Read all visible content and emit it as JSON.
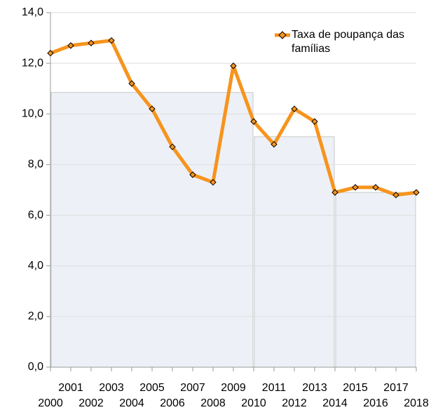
{
  "chart_data": {
    "type": "line",
    "categories": [
      "2000",
      "2001",
      "2002",
      "2003",
      "2004",
      "2005",
      "2006",
      "2007",
      "2008",
      "2009",
      "2010",
      "2011",
      "2012",
      "2013",
      "2014",
      "2015",
      "2016",
      "2017",
      "2018"
    ],
    "series": [
      {
        "name": "Taxa de poupança das famílias",
        "color": "#f7941d",
        "marker_color": "#f7941d",
        "values": [
          12.4,
          12.7,
          12.8,
          12.9,
          11.2,
          10.2,
          8.7,
          7.6,
          7.3,
          11.9,
          9.7,
          8.8,
          10.2,
          9.7,
          6.9,
          7.1,
          7.1,
          6.8,
          6.9
        ]
      }
    ],
    "background_bars": {
      "color": "#edf1f7",
      "edge": "#c8c8c8",
      "items": [
        {
          "from": "2000",
          "to": "2010",
          "value": 10.85
        },
        {
          "from": "2010",
          "to": "2014",
          "value": 9.1
        },
        {
          "from": "2014",
          "to": "2018",
          "value": 6.9
        }
      ]
    },
    "ylim": [
      0,
      14
    ],
    "yticks": [
      {
        "value": 0,
        "label": "0,0"
      },
      {
        "value": 2,
        "label": "2,0"
      },
      {
        "value": 4,
        "label": "4,0"
      },
      {
        "value": 6,
        "label": "6,0"
      },
      {
        "value": 8,
        "label": "8,0"
      },
      {
        "value": 10,
        "label": "10,0"
      },
      {
        "value": 12,
        "label": "12,0"
      },
      {
        "value": 14,
        "label": "14,0"
      }
    ],
    "grid": true,
    "legend": "top-right"
  }
}
